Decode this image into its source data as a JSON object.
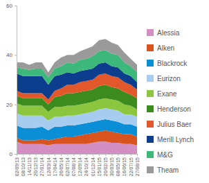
{
  "chart_data": {
    "type": "area",
    "stacked": true,
    "grid": false,
    "categories": [
      "02/09/13",
      "08/10/13",
      "14/11/13",
      "20/12/13",
      "27/01/14",
      "12/03/14",
      "17/04/14",
      "26/05/14",
      "02/07/14",
      "07/08/14",
      "12/09/14",
      "24/10/14",
      "01/12/14",
      "15/01/15",
      "20/02/15",
      "30/03/15",
      "08/05/15",
      "16/06/15",
      "22/07/15",
      "27/08/15"
    ],
    "ylim": [
      0,
      60
    ],
    "yticks": [
      0,
      20,
      40,
      60
    ],
    "series": [
      {
        "name": "Alessia",
        "color": "#d38fc4",
        "values": [
          5,
          4,
          4,
          4,
          4,
          3.5,
          4,
          4,
          4,
          4,
          4,
          4,
          4.5,
          5,
          5,
          4.5,
          4.5,
          4,
          4,
          3.5
        ]
      },
      {
        "name": "Alken",
        "color": "#d9531e",
        "values": [
          1.5,
          1.5,
          1.5,
          1.5,
          2,
          2,
          2,
          2.5,
          3,
          3,
          3.5,
          4,
          4,
          4,
          4.5,
          4.5,
          4,
          4,
          4,
          3.5
        ]
      },
      {
        "name": "Blackrock",
        "color": "#0a8ed6",
        "values": [
          5,
          5,
          5,
          5,
          5,
          4,
          5,
          4.5,
          4.5,
          4.5,
          4.5,
          4.5,
          4.5,
          4.5,
          4.5,
          4.5,
          4.5,
          4,
          4,
          4
        ]
      },
      {
        "name": "Eurizon",
        "color": "#a6cdef",
        "values": [
          5,
          5,
          5,
          5,
          4.5,
          4,
          4,
          4,
          4,
          4,
          4,
          4,
          4,
          4.5,
          4.5,
          4.5,
          4.5,
          4,
          4,
          4
        ]
      },
      {
        "name": "Exane",
        "color": "#8cc63f",
        "values": [
          4,
          4,
          4,
          4,
          4,
          3.5,
          4,
          4,
          4,
          4,
          4,
          4,
          4,
          4,
          4,
          4,
          4,
          4,
          3.5,
          3
        ]
      },
      {
        "name": "Henderson",
        "color": "#3b8b1f",
        "values": [
          3,
          3,
          3,
          3,
          3,
          3,
          4,
          4.5,
          5,
          5,
          5,
          5,
          5,
          5.5,
          5.5,
          5,
          5,
          5,
          4.5,
          4.5
        ]
      },
      {
        "name": "Julius Baer",
        "color": "#e2582a",
        "values": [
          2,
          2,
          2,
          2,
          2,
          2,
          2.5,
          3,
          3.5,
          3.5,
          4,
          4,
          4,
          4.5,
          4.5,
          4.5,
          4.5,
          4,
          4,
          3.5
        ]
      },
      {
        "name": "Merill Lynch",
        "color": "#0d3e8e",
        "values": [
          7,
          7,
          7,
          7,
          7,
          6,
          6,
          5.5,
          5,
          4.5,
          4.5,
          4.5,
          4.5,
          4.5,
          4.5,
          4,
          4,
          3.5,
          3.5,
          3
        ]
      },
      {
        "name": "M&G",
        "color": "#3cb87a",
        "values": [
          2.5,
          3,
          2.5,
          3,
          3,
          3,
          3,
          3.5,
          4,
          4,
          4.5,
          4.5,
          5,
          5,
          5,
          5,
          5,
          4.5,
          4,
          4
        ]
      },
      {
        "name": "Theam",
        "color": "#9a9a9a",
        "values": [
          2,
          2.5,
          2,
          2.5,
          2.5,
          2,
          2.5,
          3.5,
          3,
          3.5,
          3.5,
          4,
          4,
          4.5,
          4.5,
          4.5,
          4,
          4,
          3,
          3
        ]
      }
    ]
  }
}
